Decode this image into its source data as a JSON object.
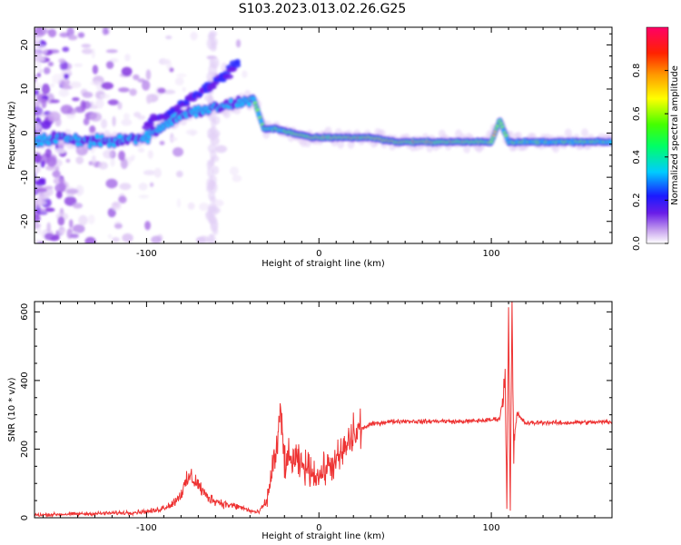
{
  "figure_title": "S103.2023.013.02.26.G25",
  "colors": {
    "snr_line": "#ee3333",
    "axis": "#000000"
  },
  "chart_data": [
    {
      "type": "heatmap",
      "xlabel": "Height of straight line (km)",
      "ylabel": "Frequency (Hz)",
      "xlim": [
        -165,
        170
      ],
      "ylim": [
        -25,
        24
      ],
      "xticks": [
        -100,
        0,
        100
      ],
      "yticks": [
        -20,
        -10,
        0,
        10,
        20
      ],
      "colorbar": {
        "label": "Normalized spectral amplitude",
        "range": [
          0,
          1
        ],
        "ticks": [
          0.0,
          0.2,
          0.4,
          0.6,
          0.8
        ],
        "colormap": "rainbow (violet → blue → cyan → green → yellow → orange → red → magenta)"
      },
      "ridge": {
        "description": "dominant frequency ridge",
        "points": [
          [
            -165,
            -2
          ],
          [
            -150,
            -1
          ],
          [
            -130,
            -2
          ],
          [
            -120,
            -2
          ],
          [
            -110,
            -1
          ],
          [
            -100,
            -1
          ],
          [
            -90,
            2
          ],
          [
            -80,
            4
          ],
          [
            -70,
            5
          ],
          [
            -55,
            6
          ],
          [
            -45,
            7
          ],
          [
            -38,
            8
          ],
          [
            -32,
            1
          ],
          [
            -25,
            1
          ],
          [
            -15,
            0
          ],
          [
            -5,
            -1
          ],
          [
            5,
            -1
          ],
          [
            15,
            -1
          ],
          [
            30,
            -1
          ],
          [
            45,
            -2
          ],
          [
            60,
            -2
          ],
          [
            75,
            -2
          ],
          [
            90,
            -2
          ],
          [
            100,
            -2
          ],
          [
            105,
            3
          ],
          [
            110,
            -2
          ],
          [
            130,
            -2
          ],
          [
            150,
            -2
          ],
          [
            170,
            -2
          ]
        ]
      },
      "upper_branch": {
        "description": "secondary rising branch",
        "points": [
          [
            -100,
            2
          ],
          [
            -85,
            5
          ],
          [
            -70,
            9
          ],
          [
            -55,
            13
          ],
          [
            -47,
            16
          ]
        ]
      },
      "scatter_region_xlim": [
        -165,
        -40
      ]
    },
    {
      "type": "line",
      "xlabel": "Height of straight line (km)",
      "ylabel": "SNR (10 * v/v)",
      "xlim": [
        -165,
        170
      ],
      "ylim": [
        0,
        630
      ],
      "xticks": [
        -100,
        0,
        100
      ],
      "yticks": [
        0,
        200,
        400,
        600
      ],
      "series": [
        {
          "x": [
            -165,
            -150,
            -130,
            -110,
            -95,
            -85,
            -80,
            -75,
            -72,
            -65,
            -55,
            -45,
            -40,
            -35,
            -30,
            -27,
            -25,
            -22,
            -20,
            -15,
            -10,
            -5,
            0,
            5,
            10,
            15,
            20,
            25,
            30,
            40,
            50,
            60,
            70,
            80,
            90,
            100,
            105,
            108,
            109,
            110,
            111,
            112,
            113,
            115,
            120,
            130,
            140,
            150,
            160,
            170
          ],
          "values": [
            8,
            10,
            12,
            15,
            20,
            40,
            70,
            120,
            110,
            60,
            40,
            30,
            20,
            15,
            50,
            150,
            180,
            300,
            160,
            170,
            150,
            140,
            120,
            150,
            160,
            200,
            240,
            260,
            272,
            280,
            282,
            280,
            282,
            280,
            282,
            285,
            290,
            400,
            60,
            600,
            40,
            630,
            200,
            300,
            275,
            278,
            276,
            278,
            278,
            280
          ]
        }
      ]
    }
  ]
}
